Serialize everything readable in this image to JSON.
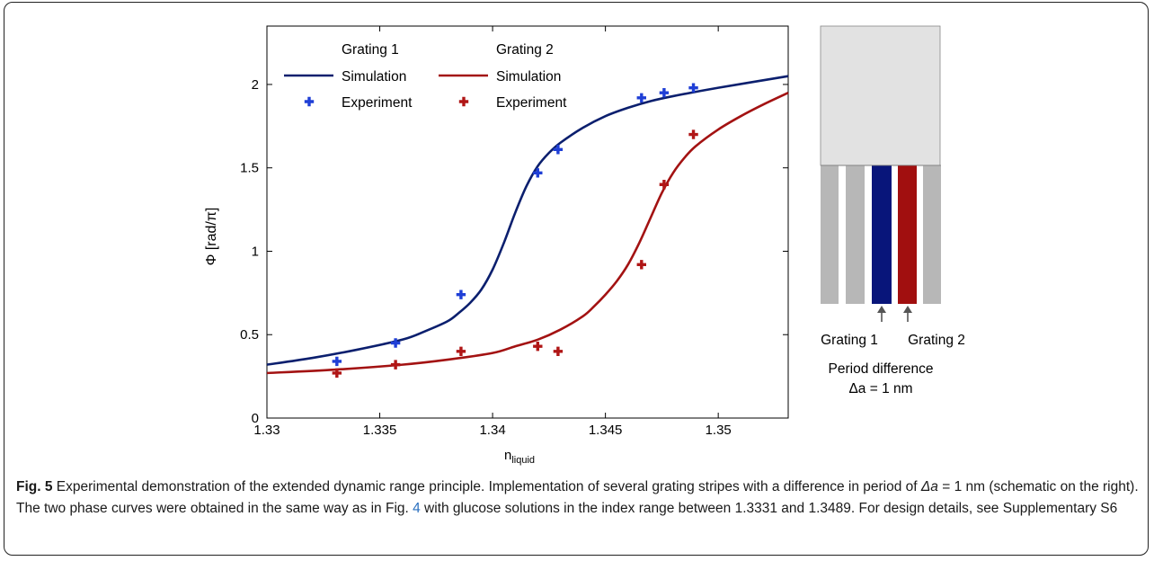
{
  "chart_data": {
    "type": "line",
    "xlabel": "n",
    "xlabel_sub": "liquid",
    "ylabel": "Φ [rad/π]",
    "xlim": [
      1.33,
      1.3531
    ],
    "ylim": [
      0,
      2.35
    ],
    "xticks": [
      1.33,
      1.335,
      1.34,
      1.345,
      1.35
    ],
    "xtick_labels": [
      "1.33",
      "1.335",
      "1.34",
      "1.345",
      "1.35"
    ],
    "yticks": [
      0,
      0.5,
      1,
      1.5,
      2
    ],
    "ytick_labels": [
      "0",
      "0.5",
      "1",
      "1.5",
      "2"
    ],
    "grid": false,
    "legend_placement": "top-left",
    "legend_group_titles": [
      "Grating 1",
      "Grating 2"
    ],
    "series": [
      {
        "group": "Grating 1",
        "name": "Simulation",
        "kind": "line",
        "color": "#0b1f6e",
        "x": [
          1.33,
          1.332,
          1.334,
          1.336,
          1.337,
          1.338,
          1.3385,
          1.339,
          1.3395,
          1.34,
          1.3405,
          1.341,
          1.3415,
          1.342,
          1.3425,
          1.343,
          1.344,
          1.345,
          1.346,
          1.347,
          1.348,
          1.35,
          1.3531
        ],
        "y": [
          0.32,
          0.36,
          0.41,
          0.47,
          0.52,
          0.58,
          0.63,
          0.69,
          0.77,
          0.89,
          1.05,
          1.23,
          1.39,
          1.51,
          1.59,
          1.65,
          1.74,
          1.81,
          1.86,
          1.9,
          1.93,
          1.98,
          2.05
        ]
      },
      {
        "group": "Grating 1",
        "name": "Experiment",
        "kind": "marker",
        "color": "#1f3fd6",
        "x": [
          1.3331,
          1.3357,
          1.3386,
          1.342,
          1.3429,
          1.3466,
          1.3476,
          1.3489
        ],
        "y": [
          0.34,
          0.45,
          0.74,
          1.47,
          1.61,
          1.92,
          1.95,
          1.98
        ]
      },
      {
        "group": "Grating 2",
        "name": "Simulation",
        "kind": "line",
        "color": "#a31212",
        "x": [
          1.33,
          1.333,
          1.336,
          1.338,
          1.34,
          1.341,
          1.342,
          1.343,
          1.344,
          1.3445,
          1.345,
          1.3455,
          1.346,
          1.3465,
          1.347,
          1.3475,
          1.348,
          1.3485,
          1.349,
          1.35,
          1.351,
          1.352,
          1.3531
        ],
        "y": [
          0.27,
          0.29,
          0.32,
          0.35,
          0.39,
          0.43,
          0.47,
          0.53,
          0.61,
          0.67,
          0.74,
          0.82,
          0.92,
          1.05,
          1.2,
          1.35,
          1.47,
          1.56,
          1.63,
          1.73,
          1.81,
          1.88,
          1.95
        ]
      },
      {
        "group": "Grating 2",
        "name": "Experiment",
        "kind": "marker",
        "color": "#b01616",
        "x": [
          1.3331,
          1.3357,
          1.3386,
          1.342,
          1.3429,
          1.3466,
          1.3476,
          1.3489
        ],
        "y": [
          0.27,
          0.32,
          0.4,
          0.43,
          0.4,
          0.92,
          1.4,
          1.7
        ]
      }
    ]
  },
  "schematic": {
    "grating_labels": [
      "Grating 1",
      "Grating 2"
    ],
    "caption_line1": "Period difference",
    "caption_line2": "Δa = 1 nm",
    "colors": {
      "block": "#e2e2e2",
      "stripe": "#b7b7b7",
      "grating1": "#08157a",
      "grating2": "#a10f0f",
      "arrow": "#555555"
    }
  },
  "caption": {
    "label": "Fig. 5",
    "text1": "Experimental demonstration of the extended dynamic range principle. Implementation of several grating stripes with a difference in period of ",
    "delta_a": "Δa",
    "text2": " = 1 nm (schematic on the right). The two phase curves were obtained in the same way as in Fig. ",
    "ref": "4",
    "text3": " with glucose solutions in the index range between 1.3331 and 1.3489. For design details, see Supplementary S6"
  }
}
